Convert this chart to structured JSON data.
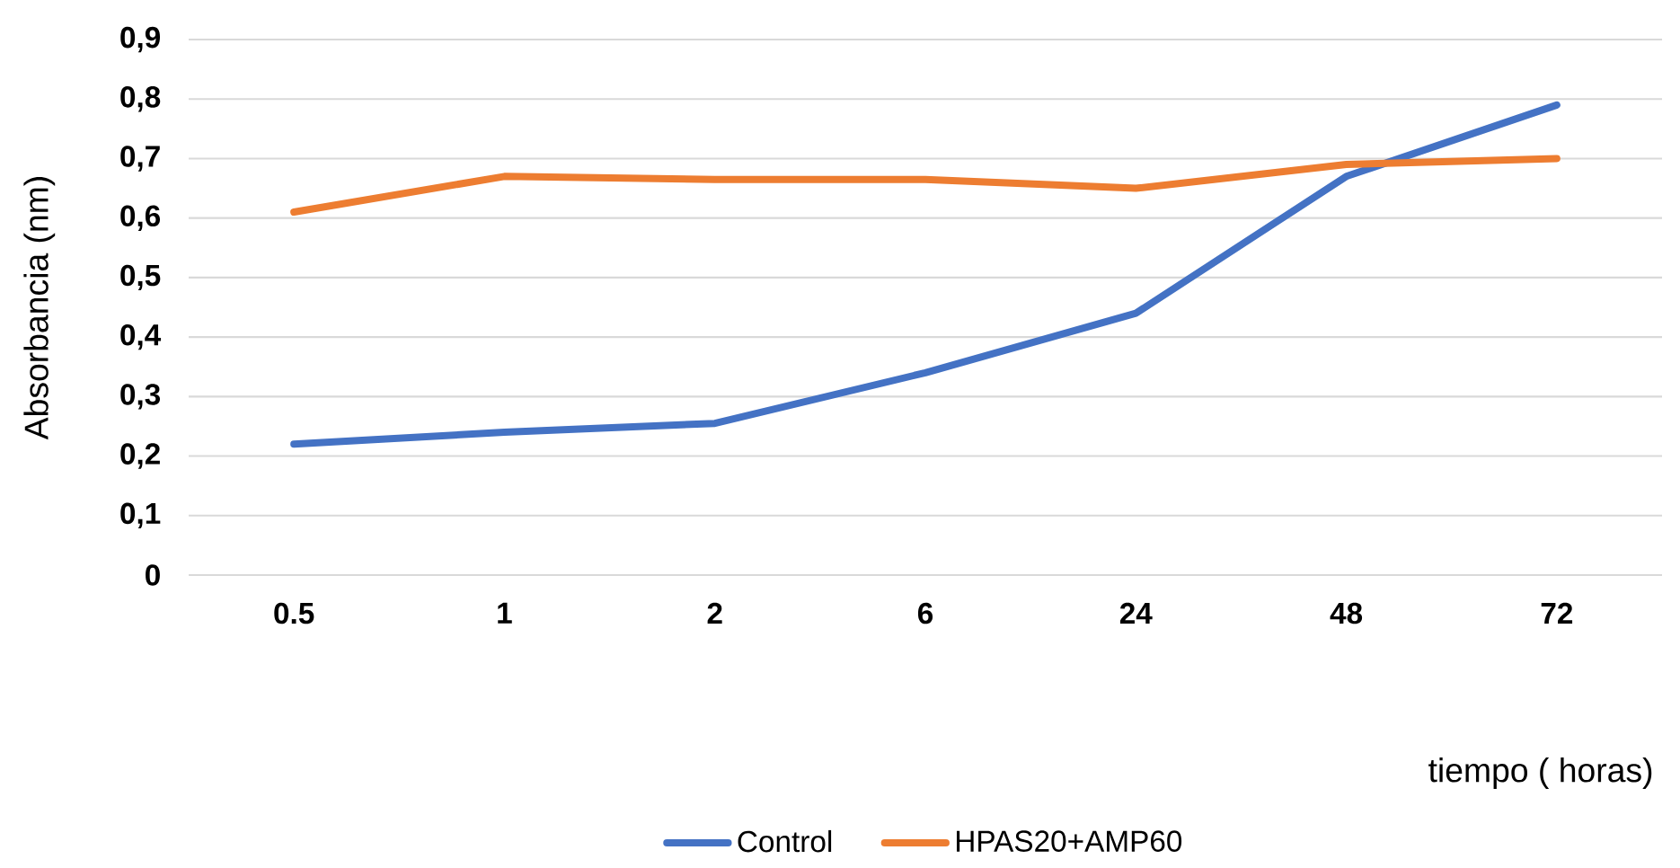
{
  "chart_data": {
    "type": "line",
    "xlabel": "tiempo ( horas)",
    "ylabel": "Absorbancia (nm)",
    "categories": [
      "0.5",
      "1",
      "2",
      "6",
      "24",
      "48",
      "72"
    ],
    "series": [
      {
        "name": "Control",
        "color": "#4472c4",
        "values": [
          0.22,
          0.24,
          0.255,
          0.34,
          0.44,
          0.67,
          0.79
        ]
      },
      {
        "name": "HPAS20+AMP60",
        "color": "#ed7d31",
        "values": [
          0.61,
          0.67,
          0.665,
          0.665,
          0.65,
          0.69,
          0.7
        ]
      }
    ],
    "ylim": [
      0,
      0.9
    ],
    "yticks": [
      {
        "value": 0,
        "label": "0"
      },
      {
        "value": 0.1,
        "label": "0,1"
      },
      {
        "value": 0.2,
        "label": "0,2"
      },
      {
        "value": 0.3,
        "label": "0,3"
      },
      {
        "value": 0.4,
        "label": "0,4"
      },
      {
        "value": 0.5,
        "label": "0,5"
      },
      {
        "value": 0.6,
        "label": "0,6"
      },
      {
        "value": 0.7,
        "label": "0,7"
      },
      {
        "value": 0.8,
        "label": "0,8"
      },
      {
        "value": 0.9,
        "label": "0,9"
      }
    ],
    "grid": "y",
    "legend": "bottom"
  }
}
